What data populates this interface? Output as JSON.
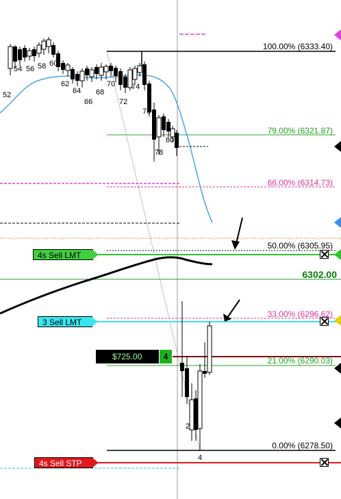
{
  "fib_levels": [
    {
      "label": "100.00% (6333.40)",
      "color": "#000000"
    },
    {
      "label": "79.00% (6321.87)",
      "color": "#22a022"
    },
    {
      "label": "66.00% (6314.73)",
      "color": "#e0309a"
    },
    {
      "label": "50.00% (6305.95)",
      "color": "#000000"
    },
    {
      "label": "33.00% (6296.62)",
      "color": "#e0309a"
    },
    {
      "label": "21.00% (6290.03)",
      "color": "#22a022"
    },
    {
      "label": "0.00% (6278.50)",
      "color": "#000000"
    }
  ],
  "bar_labels": [
    "52",
    "54",
    "56",
    "58",
    "60",
    "62",
    "64",
    "66",
    "68",
    "70",
    "72",
    "74",
    "76",
    "78",
    "80",
    "2",
    "4"
  ],
  "orders": {
    "sell_lmt_4s": {
      "label": "4s  Sell LMT",
      "color": "#3fcf3f"
    },
    "sell_lmt_3": {
      "label": "3  Sell LMT",
      "color": "#39e6f0"
    },
    "sell_stp_4s": {
      "label": "4s  Sell STP",
      "color": "#e0181e"
    }
  },
  "position": {
    "pnl": "$725.00",
    "qty": "4"
  },
  "current_price": "6302.00",
  "colors": {
    "ma_fast": "#4aa3e8",
    "ma_slow": "#000000"
  }
}
